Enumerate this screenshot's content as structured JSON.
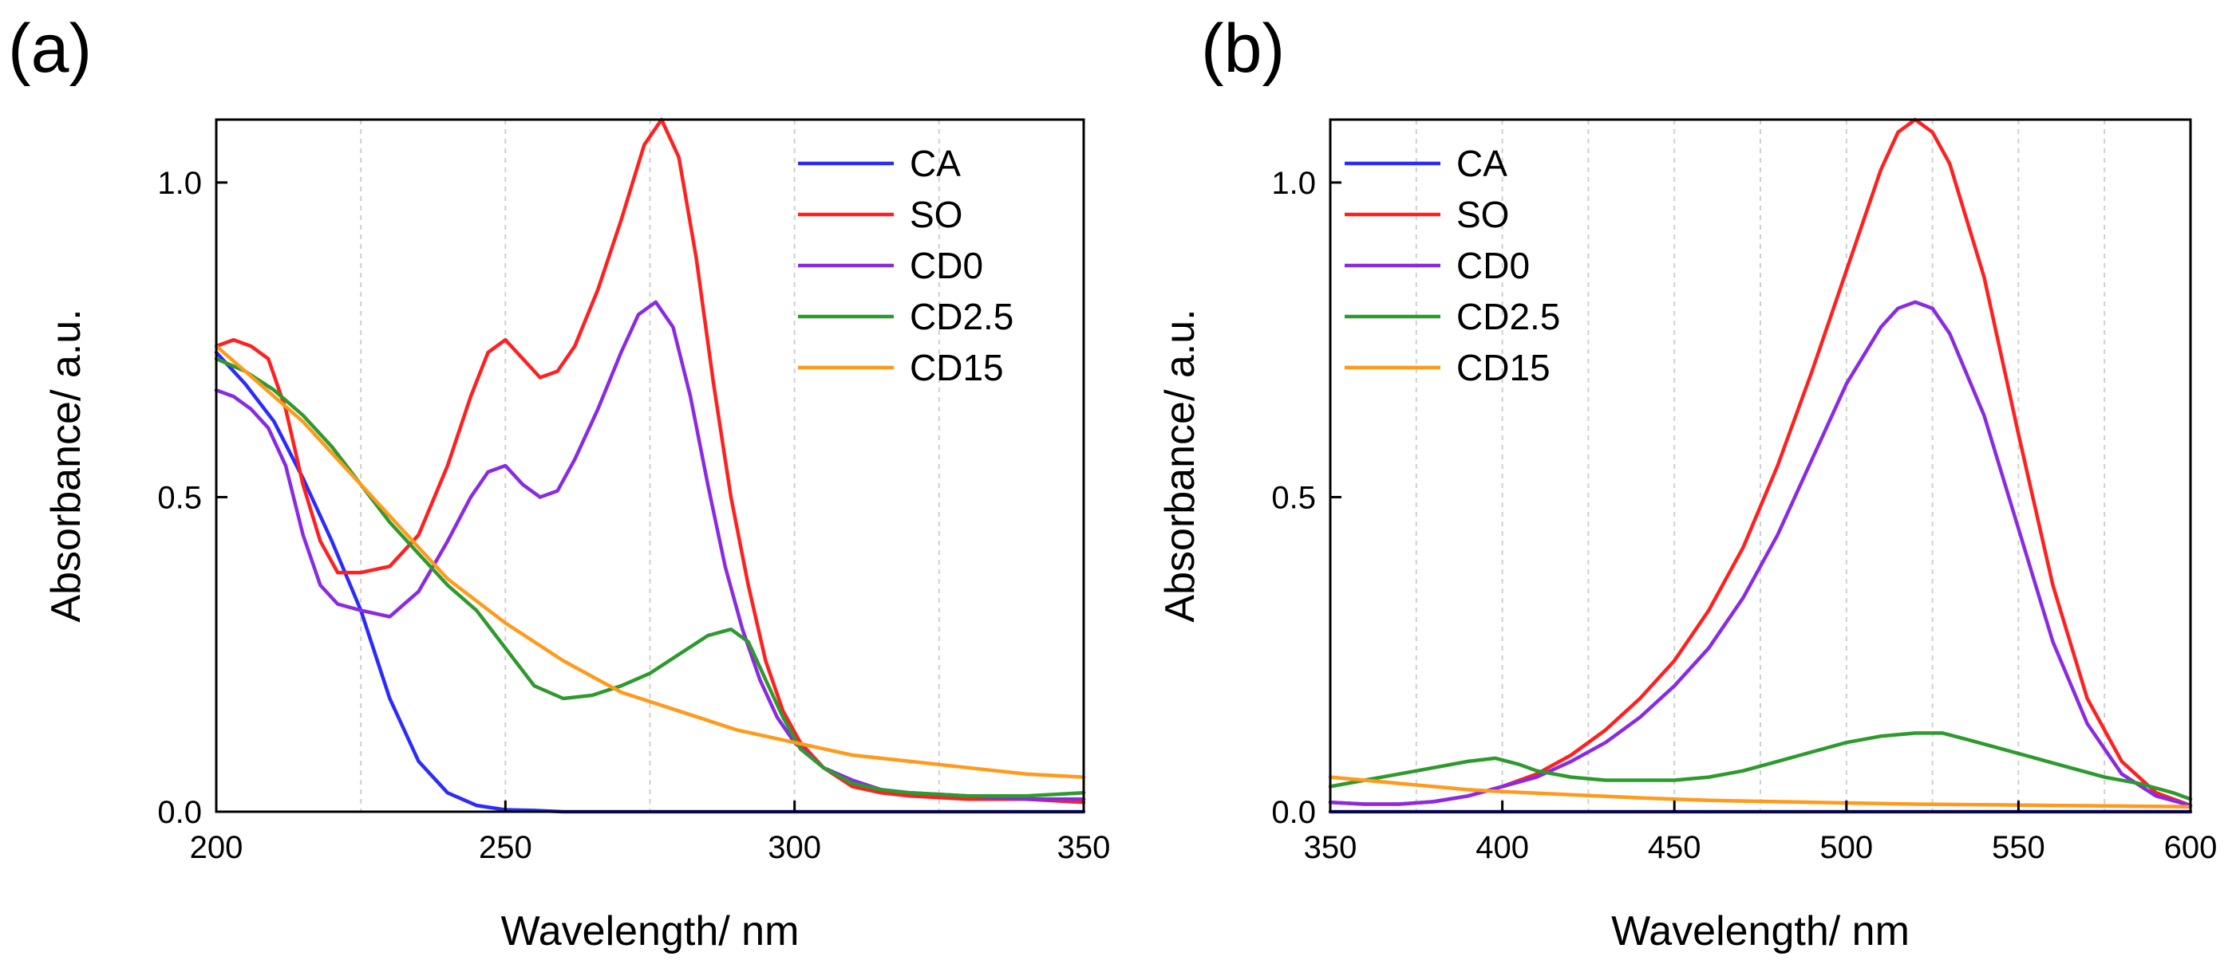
{
  "chart_data": [
    {
      "panel": "(a)",
      "type": "line",
      "xlabel": "Wavelength/ nm",
      "ylabel": "Absorbance/ a.u.",
      "xlim": [
        200,
        350
      ],
      "ylim": [
        0,
        1.1
      ],
      "xticks": [
        200,
        250,
        300,
        350
      ],
      "xtick_labels": [
        "200",
        "250",
        "300",
        "350"
      ],
      "yticks": [
        0.0,
        0.5,
        1.0
      ],
      "ytick_labels": [
        "0.0",
        "0.5",
        "1.0"
      ],
      "minor_grid_x": [
        225,
        250,
        275,
        300,
        325
      ],
      "legend": "top-right",
      "series": [
        {
          "name": "CA",
          "color": "#2b2bff",
          "x": [
            200,
            205,
            210,
            215,
            220,
            225,
            230,
            235,
            240,
            245,
            250,
            255,
            260,
            270,
            280,
            300,
            320,
            350
          ],
          "y": [
            0.73,
            0.68,
            0.62,
            0.53,
            0.43,
            0.32,
            0.18,
            0.08,
            0.03,
            0.01,
            0.003,
            0.002,
            0.0,
            0.0,
            0.0,
            0.0,
            0.0,
            0.0
          ]
        },
        {
          "name": "SO",
          "color": "#ff2020",
          "x": [
            200,
            203,
            206,
            209,
            212,
            215,
            218,
            221,
            225,
            230,
            235,
            240,
            244,
            247,
            250,
            253,
            256,
            259,
            262,
            266,
            270,
            274,
            277,
            280,
            283,
            286,
            289,
            292,
            295,
            298,
            301,
            305,
            310,
            315,
            320,
            330,
            340,
            350
          ],
          "y": [
            0.74,
            0.75,
            0.74,
            0.72,
            0.64,
            0.52,
            0.43,
            0.38,
            0.38,
            0.39,
            0.44,
            0.55,
            0.66,
            0.73,
            0.75,
            0.72,
            0.69,
            0.7,
            0.74,
            0.83,
            0.94,
            1.06,
            1.1,
            1.04,
            0.88,
            0.68,
            0.5,
            0.36,
            0.24,
            0.16,
            0.11,
            0.07,
            0.04,
            0.03,
            0.025,
            0.02,
            0.02,
            0.015
          ]
        },
        {
          "name": "CD0",
          "color": "#8a2be2",
          "x": [
            200,
            203,
            206,
            209,
            212,
            215,
            218,
            221,
            225,
            230,
            235,
            240,
            244,
            247,
            250,
            253,
            256,
            259,
            262,
            266,
            270,
            273,
            276,
            279,
            282,
            285,
            288,
            291,
            294,
            297,
            300,
            305,
            310,
            315,
            320,
            330,
            340,
            350
          ],
          "y": [
            0.67,
            0.66,
            0.64,
            0.61,
            0.55,
            0.44,
            0.36,
            0.33,
            0.32,
            0.31,
            0.35,
            0.43,
            0.5,
            0.54,
            0.55,
            0.52,
            0.5,
            0.51,
            0.56,
            0.64,
            0.73,
            0.79,
            0.81,
            0.77,
            0.66,
            0.52,
            0.39,
            0.29,
            0.21,
            0.15,
            0.11,
            0.07,
            0.05,
            0.035,
            0.03,
            0.025,
            0.02,
            0.02
          ]
        },
        {
          "name": "CD2.5",
          "color": "#2e9a2e",
          "x": [
            200,
            205,
            210,
            215,
            220,
            225,
            230,
            235,
            240,
            245,
            250,
            255,
            260,
            265,
            270,
            275,
            280,
            285,
            289,
            292,
            295,
            298,
            301,
            305,
            310,
            315,
            320,
            330,
            340,
            350
          ],
          "y": [
            0.72,
            0.7,
            0.67,
            0.63,
            0.58,
            0.52,
            0.46,
            0.41,
            0.36,
            0.32,
            0.26,
            0.2,
            0.18,
            0.185,
            0.2,
            0.22,
            0.25,
            0.28,
            0.29,
            0.27,
            0.21,
            0.15,
            0.1,
            0.07,
            0.045,
            0.035,
            0.03,
            0.025,
            0.025,
            0.03
          ]
        },
        {
          "name": "CD15",
          "color": "#ff9a1a",
          "x": [
            200,
            205,
            210,
            215,
            220,
            225,
            230,
            235,
            240,
            250,
            260,
            270,
            280,
            290,
            300,
            310,
            320,
            330,
            340,
            350
          ],
          "y": [
            0.74,
            0.7,
            0.66,
            0.62,
            0.57,
            0.52,
            0.47,
            0.42,
            0.37,
            0.3,
            0.24,
            0.19,
            0.16,
            0.13,
            0.11,
            0.09,
            0.08,
            0.07,
            0.06,
            0.055
          ]
        }
      ]
    },
    {
      "panel": "(b)",
      "type": "line",
      "xlabel": "Wavelength/ nm",
      "ylabel": "Absorbance/ a.u.",
      "xlim": [
        350,
        600
      ],
      "ylim": [
        0,
        1.1
      ],
      "xticks": [
        350,
        400,
        450,
        500,
        550,
        600
      ],
      "xtick_labels": [
        "350",
        "400",
        "450",
        "500",
        "550",
        "600"
      ],
      "yticks": [
        0.0,
        0.5,
        1.0
      ],
      "ytick_labels": [
        "0.0",
        "0.5",
        "1.0"
      ],
      "minor_grid_x": [
        375,
        400,
        425,
        450,
        475,
        500,
        525,
        550,
        575
      ],
      "legend": "top-left",
      "series": [
        {
          "name": "CA",
          "color": "#2b2bff",
          "x": [
            350,
            400,
            450,
            500,
            550,
            600
          ],
          "y": [
            0.0,
            0.0,
            0.0,
            0.0,
            0.0,
            0.0
          ]
        },
        {
          "name": "SO",
          "color": "#ff2020",
          "x": [
            350,
            360,
            370,
            380,
            390,
            400,
            410,
            420,
            430,
            440,
            450,
            460,
            470,
            480,
            490,
            500,
            510,
            515,
            520,
            525,
            530,
            540,
            550,
            560,
            570,
            580,
            590,
            600
          ],
          "y": [
            0.015,
            0.012,
            0.012,
            0.016,
            0.025,
            0.04,
            0.06,
            0.09,
            0.13,
            0.18,
            0.24,
            0.32,
            0.42,
            0.55,
            0.7,
            0.86,
            1.02,
            1.08,
            1.1,
            1.08,
            1.03,
            0.85,
            0.6,
            0.36,
            0.18,
            0.08,
            0.03,
            0.01
          ]
        },
        {
          "name": "CD0",
          "color": "#8a2be2",
          "x": [
            350,
            360,
            370,
            380,
            390,
            400,
            410,
            420,
            430,
            440,
            450,
            460,
            470,
            480,
            490,
            500,
            510,
            515,
            520,
            525,
            530,
            540,
            550,
            560,
            570,
            580,
            590,
            600
          ],
          "y": [
            0.015,
            0.012,
            0.012,
            0.016,
            0.025,
            0.04,
            0.055,
            0.08,
            0.11,
            0.15,
            0.2,
            0.26,
            0.34,
            0.44,
            0.56,
            0.68,
            0.77,
            0.8,
            0.81,
            0.8,
            0.76,
            0.63,
            0.45,
            0.27,
            0.14,
            0.06,
            0.025,
            0.01
          ]
        },
        {
          "name": "CD2.5",
          "color": "#2e9a2e",
          "x": [
            350,
            360,
            370,
            380,
            390,
            398,
            405,
            410,
            420,
            430,
            440,
            450,
            460,
            470,
            480,
            490,
            500,
            510,
            520,
            528,
            535,
            545,
            555,
            565,
            575,
            585,
            595,
            600
          ],
          "y": [
            0.04,
            0.05,
            0.06,
            0.07,
            0.08,
            0.085,
            0.075,
            0.065,
            0.055,
            0.05,
            0.05,
            0.05,
            0.055,
            0.065,
            0.08,
            0.095,
            0.11,
            0.12,
            0.125,
            0.125,
            0.115,
            0.1,
            0.085,
            0.07,
            0.055,
            0.045,
            0.03,
            0.02
          ]
        },
        {
          "name": "CD15",
          "color": "#ff9a1a",
          "x": [
            350,
            360,
            370,
            380,
            390,
            400,
            420,
            440,
            460,
            480,
            500,
            520,
            540,
            560,
            580,
            600
          ],
          "y": [
            0.055,
            0.05,
            0.045,
            0.04,
            0.035,
            0.032,
            0.027,
            0.022,
            0.018,
            0.016,
            0.014,
            0.012,
            0.011,
            0.01,
            0.009,
            0.008
          ]
        }
      ]
    }
  ]
}
